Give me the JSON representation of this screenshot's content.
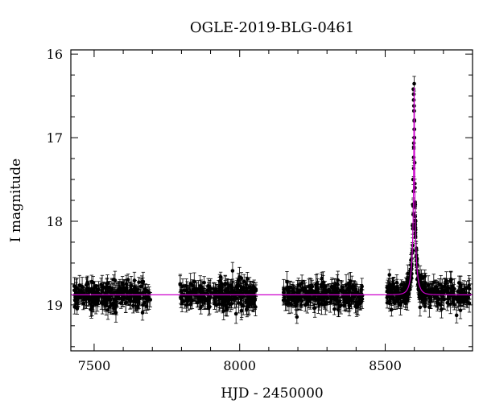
{
  "chart_data": {
    "type": "scatter",
    "title": "OGLE-2019-BLG-0461",
    "xlabel": "HJD - 2450000",
    "ylabel": "I magnitude",
    "xlim": [
      7420,
      8800
    ],
    "ylim": [
      19.55,
      15.95
    ],
    "y_inverted": true,
    "x_ticks": [
      7500,
      8000,
      8500
    ],
    "y_ticks": [
      16,
      17,
      18,
      19
    ],
    "x_minor_step": 100,
    "y_minor_step": 0.25,
    "grid": false,
    "colors": {
      "data": "#000000",
      "model": "#cc00cc",
      "frame": "#000000"
    },
    "baseline_magnitude": 18.88,
    "series": [
      {
        "kind": "points_with_errorbars",
        "color": "#000000",
        "seasons": [
          {
            "x_start": 7430,
            "x_end": 7695,
            "mag_center": 18.88,
            "mag_spread": 0.13,
            "typical_error": 0.09
          },
          {
            "x_start": 7795,
            "x_end": 8060,
            "mag_center": 18.88,
            "mag_spread": 0.13,
            "typical_error": 0.09
          },
          {
            "x_start": 8150,
            "x_end": 8425,
            "mag_center": 18.88,
            "mag_spread": 0.13,
            "typical_error": 0.09
          },
          {
            "x_start": 8505,
            "x_end": 8790,
            "mag_center": 18.88,
            "mag_spread": 0.13,
            "typical_error": 0.09
          }
        ],
        "peak_points": [
          {
            "x": 8597,
            "y": 16.42
          },
          {
            "x": 8598,
            "y": 16.48
          },
          {
            "x": 8598,
            "y": 16.55
          },
          {
            "x": 8599,
            "y": 16.62
          },
          {
            "x": 8599,
            "y": 16.68
          },
          {
            "x": 8600,
            "y": 16.8
          },
          {
            "x": 8600,
            "y": 16.9
          },
          {
            "x": 8600,
            "y": 17.0
          },
          {
            "x": 8601,
            "y": 17.3
          },
          {
            "x": 8602,
            "y": 17.6
          },
          {
            "x": 8603,
            "y": 17.8
          },
          {
            "x": 8596,
            "y": 17.5
          },
          {
            "x": 8595,
            "y": 17.8
          },
          {
            "x": 8604,
            "y": 18.0
          },
          {
            "x": 8594,
            "y": 18.05
          }
        ]
      },
      {
        "kind": "model_curve",
        "model": "pspl",
        "color": "#cc00cc",
        "t0": 8599.5,
        "tE": 18,
        "u0": 0.036,
        "blend_fraction": 0.33,
        "x_range": [
          7420,
          8800
        ]
      }
    ]
  }
}
